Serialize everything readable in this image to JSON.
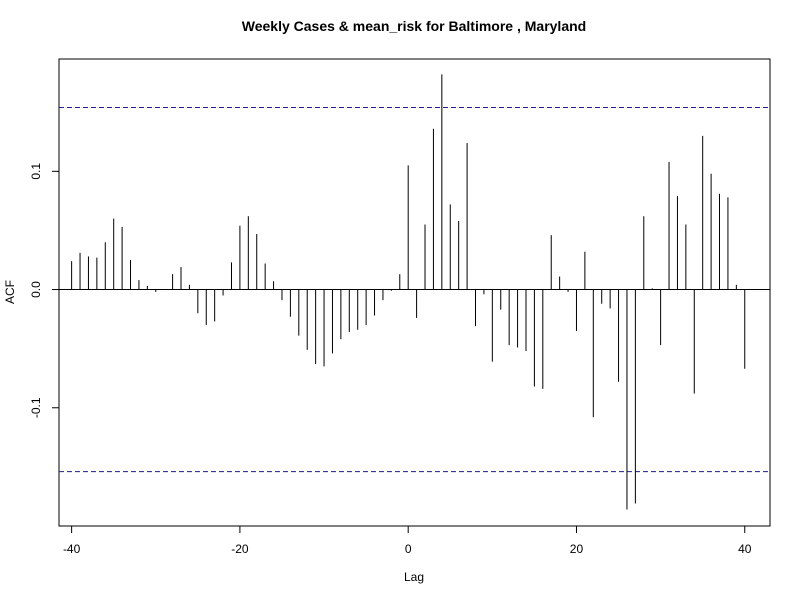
{
  "chart_data": {
    "type": "bar",
    "title": "Weekly Cases & mean_risk for Baltimore , Maryland",
    "xlabel": "Lag",
    "ylabel": "ACF",
    "xlim": [
      -41.5,
      43
    ],
    "ylim": [
      -0.2,
      0.195
    ],
    "x_ticks": [
      -40,
      -20,
      0,
      20,
      40
    ],
    "x_tick_labels": [
      "-40",
      "-20",
      "0",
      "20",
      "40"
    ],
    "y_ticks": [
      -0.1,
      0.0,
      0.1
    ],
    "y_tick_labels": [
      "-0.1",
      "0.0",
      "0.1"
    ],
    "confidence_bound": 0.154,
    "lags": [
      -40,
      -39,
      -38,
      -37,
      -36,
      -35,
      -34,
      -33,
      -32,
      -31,
      -30,
      -29,
      -28,
      -27,
      -26,
      -25,
      -24,
      -23,
      -22,
      -21,
      -20,
      -19,
      -18,
      -17,
      -16,
      -15,
      -14,
      -13,
      -12,
      -11,
      -10,
      -9,
      -8,
      -7,
      -6,
      -5,
      -4,
      -3,
      -2,
      -1,
      0,
      1,
      2,
      3,
      4,
      5,
      6,
      7,
      8,
      9,
      10,
      11,
      12,
      13,
      14,
      15,
      16,
      17,
      18,
      19,
      20,
      21,
      22,
      23,
      24,
      25,
      26,
      27,
      28,
      29,
      30,
      31,
      32,
      33,
      34,
      35,
      36,
      37,
      38,
      39,
      40
    ],
    "values": [
      0.024,
      0.031,
      0.028,
      0.027,
      0.04,
      0.06,
      0.053,
      0.025,
      0.008,
      0.003,
      -0.002,
      0.0,
      0.013,
      0.019,
      0.004,
      -0.02,
      -0.03,
      -0.027,
      -0.005,
      0.023,
      0.054,
      0.062,
      0.047,
      0.022,
      0.007,
      -0.009,
      -0.023,
      -0.039,
      -0.051,
      -0.063,
      -0.065,
      -0.054,
      -0.042,
      -0.036,
      -0.034,
      -0.03,
      -0.022,
      -0.009,
      -0.001,
      0.013,
      0.105,
      -0.024,
      0.055,
      0.136,
      0.182,
      0.072,
      0.058,
      0.124,
      -0.031,
      -0.004,
      -0.061,
      -0.017,
      -0.047,
      -0.049,
      -0.052,
      -0.082,
      -0.084,
      0.046,
      0.011,
      -0.002,
      -0.035,
      0.032,
      -0.108,
      -0.012,
      -0.016,
      -0.078,
      -0.186,
      -0.181,
      0.062,
      0.001,
      -0.047,
      0.108,
      0.079,
      0.055,
      -0.088,
      0.13,
      0.098,
      0.081,
      0.078,
      0.004,
      -0.067
    ],
    "grid": false,
    "bar_color": "#000000",
    "bound_color": "#1f1f8f"
  }
}
